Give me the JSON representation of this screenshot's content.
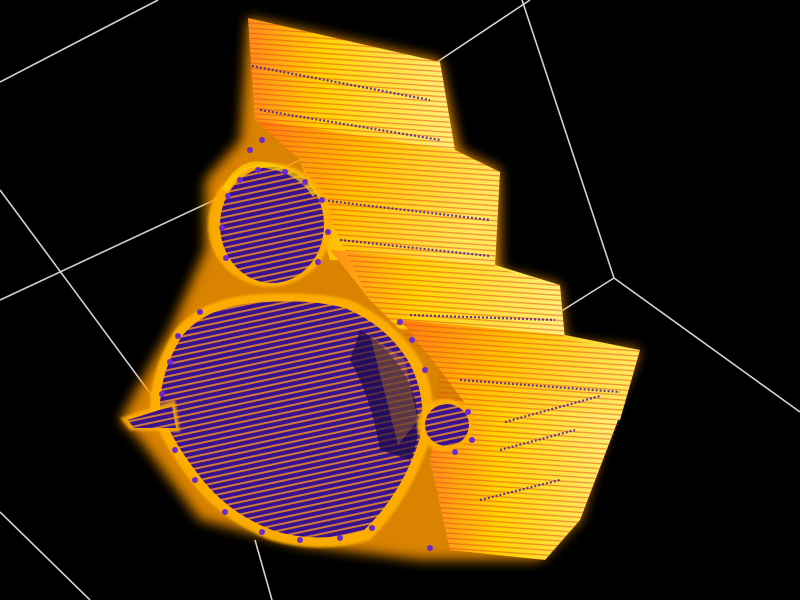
{
  "scene": {
    "background": "#000000",
    "grid_color": "#e8e8e8",
    "fractal_palette": {
      "outer": "#ffe600",
      "mid": "#ff9a1a",
      "edge": "#e0401e",
      "inner": "#5a1bb0",
      "deep": "#1a0a4a"
    },
    "icon": "mandelbrot-volume-render"
  }
}
